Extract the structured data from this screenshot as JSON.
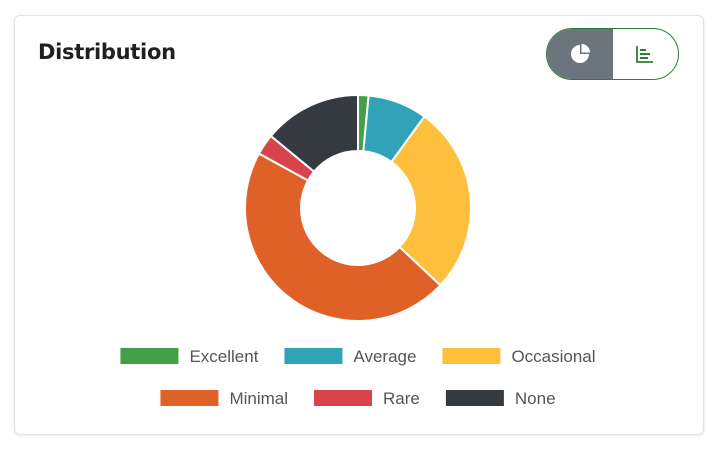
{
  "card": {
    "title": "Distribution"
  },
  "toggle": {
    "options": [
      {
        "icon": "pie-chart-icon",
        "active": true
      },
      {
        "icon": "bar-chart-icon",
        "active": false
      }
    ]
  },
  "chart_data": {
    "type": "pie",
    "donut": true,
    "legend_position": "bottom",
    "series": [
      {
        "name": "Excellent",
        "value": 1.5,
        "color": "#43a047"
      },
      {
        "name": "Average",
        "value": 8.5,
        "color": "#31a2b8"
      },
      {
        "name": "Occasional",
        "value": 27,
        "color": "#fec03c"
      },
      {
        "name": "Minimal",
        "value": 46,
        "color": "#e06128"
      },
      {
        "name": "Rare",
        "value": 3,
        "color": "#d9434c"
      },
      {
        "name": "None",
        "value": 14,
        "color": "#343a40"
      }
    ]
  }
}
